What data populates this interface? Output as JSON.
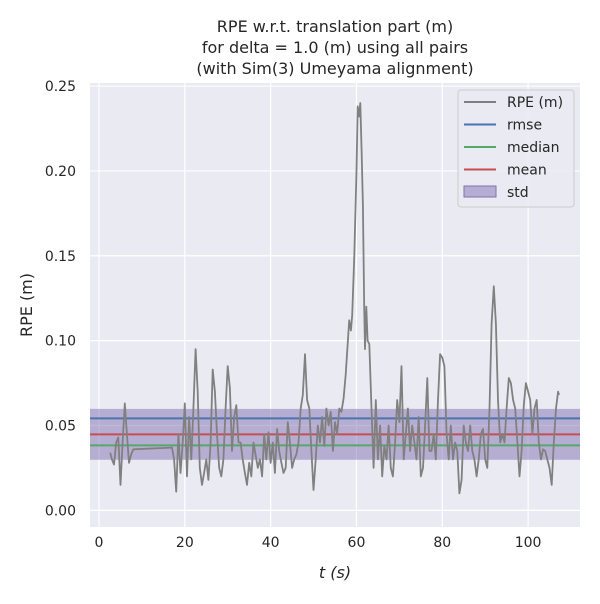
{
  "chart_data": {
    "type": "line",
    "title": [
      "RPE w.r.t. translation part (m)",
      "for delta = 1.0 (m) using all pairs",
      "(with Sim(3) Umeyama alignment)"
    ],
    "xlabel": "t (s)",
    "ylabel": "RPE (m)",
    "xlim": [
      -2.1,
      112.1
    ],
    "ylim": [
      -0.0098,
      0.2518
    ],
    "xticks": [
      0,
      20,
      40,
      60,
      80,
      100
    ],
    "xtick_labels": [
      "0",
      "20",
      "40",
      "60",
      "80",
      "100"
    ],
    "yticks": [
      0,
      0.05,
      0.1,
      0.15,
      0.2,
      0.25
    ],
    "ytick_labels": [
      "0.00",
      "0.05",
      "0.10",
      "0.15",
      "0.20",
      "0.25"
    ],
    "grid": true,
    "legend_position": "top-right",
    "colors": {
      "background": "#eaeaf2",
      "grid": "#ffffff",
      "rpe": "#808080",
      "rmse": "#4c72b0",
      "median": "#55a868",
      "mean": "#c44e52",
      "std": "#8172b2"
    },
    "legend": [
      "RPE (m)",
      "rmse",
      "median",
      "mean",
      "std"
    ],
    "stats": {
      "rmse": 0.0542,
      "median": 0.0383,
      "mean": 0.0448,
      "std": 0.015
    },
    "series": [
      {
        "name": "RPE (m)",
        "x": [
          2.6,
          3.0,
          3.5,
          4.0,
          4.5,
          5.0,
          5.5,
          6.0,
          6.5,
          7.0,
          7.5,
          8.0,
          17.0,
          17.5,
          18.0,
          18.5,
          19.0,
          19.5,
          20.0,
          20.5,
          21.0,
          21.5,
          22.0,
          22.5,
          23.0,
          23.5,
          24.0,
          24.5,
          25.0,
          25.5,
          26.0,
          26.5,
          27.0,
          27.5,
          28.0,
          28.5,
          29.0,
          29.5,
          30.0,
          30.5,
          31.0,
          31.5,
          32.0,
          32.5,
          33.0,
          33.5,
          34.0,
          34.5,
          35.0,
          35.5,
          36.0,
          37.0,
          37.5,
          38.0,
          38.5,
          39.0,
          39.5,
          40.0,
          40.5,
          41.0,
          41.5,
          42.0,
          42.5,
          43.0,
          43.5,
          44.0,
          44.5,
          45.0,
          45.5,
          46.0,
          46.5,
          47.0,
          47.5,
          48.0,
          48.5,
          49.0,
          49.5,
          50.0,
          50.5,
          51.0,
          51.5,
          52.0,
          52.5,
          53.0,
          53.5,
          54.0,
          54.5,
          55.0,
          55.5,
          56.0,
          56.5,
          57.0,
          57.5,
          58.0,
          58.3,
          58.7,
          59.0,
          59.5,
          60.0,
          60.3,
          60.6,
          60.9,
          61.2,
          61.5,
          61.8,
          62.0,
          62.3,
          62.6,
          63.0,
          63.5,
          64.0,
          64.5,
          65.0,
          65.5,
          66.0,
          66.5,
          67.0,
          67.5,
          68.0,
          68.5,
          69.0,
          69.5,
          70.0,
          70.5,
          71.0,
          71.5,
          72.0,
          72.5,
          73.0,
          73.5,
          74.0,
          74.5,
          75.0,
          75.5,
          76.0,
          76.5,
          77.0,
          77.5,
          78.0,
          78.5,
          79.0,
          79.5,
          80.0,
          80.5,
          81.0,
          81.5,
          82.0,
          82.5,
          83.0,
          83.5,
          84.0,
          84.5,
          85.0,
          85.5,
          86.0,
          86.5,
          87.0,
          87.5,
          88.0,
          88.5,
          89.0,
          89.5,
          90.0,
          90.5,
          91.0,
          91.5,
          92.0,
          92.5,
          93.0,
          93.5,
          94.0,
          94.5,
          95.0,
          95.5,
          96.0,
          96.5,
          97.0,
          97.5,
          98.0,
          98.5,
          99.0,
          99.5,
          100.0,
          100.5,
          101.0,
          101.5,
          102.0,
          102.5,
          103.0,
          103.5,
          104.0,
          105.0,
          105.5,
          106.0,
          106.5,
          107.0,
          107.2
        ],
        "y": [
          0.034,
          0.03,
          0.027,
          0.04,
          0.043,
          0.015,
          0.04,
          0.063,
          0.045,
          0.028,
          0.033,
          0.036,
          0.037,
          0.03,
          0.011,
          0.045,
          0.022,
          0.04,
          0.063,
          0.02,
          0.055,
          0.03,
          0.06,
          0.095,
          0.07,
          0.025,
          0.015,
          0.022,
          0.03,
          0.018,
          0.04,
          0.083,
          0.07,
          0.045,
          0.025,
          0.02,
          0.03,
          0.06,
          0.085,
          0.072,
          0.035,
          0.055,
          0.062,
          0.04,
          0.04,
          0.03,
          0.022,
          0.015,
          0.028,
          0.02,
          0.04,
          0.025,
          0.03,
          0.02,
          0.045,
          0.03,
          0.046,
          0.028,
          0.04,
          0.022,
          0.048,
          0.035,
          0.028,
          0.022,
          0.025,
          0.052,
          0.04,
          0.025,
          0.03,
          0.033,
          0.04,
          0.06,
          0.068,
          0.092,
          0.065,
          0.06,
          0.035,
          0.012,
          0.03,
          0.05,
          0.04,
          0.055,
          0.038,
          0.06,
          0.05,
          0.058,
          0.035,
          0.052,
          0.045,
          0.06,
          0.058,
          0.066,
          0.08,
          0.1,
          0.112,
          0.106,
          0.115,
          0.15,
          0.2,
          0.238,
          0.232,
          0.24,
          0.212,
          0.18,
          0.12,
          0.095,
          0.12,
          0.1,
          0.098,
          0.06,
          0.025,
          0.065,
          0.03,
          0.05,
          0.02,
          0.038,
          0.03,
          0.05,
          0.025,
          0.02,
          0.04,
          0.065,
          0.052,
          0.085,
          0.03,
          0.045,
          0.06,
          0.035,
          0.05,
          0.04,
          0.03,
          0.055,
          0.02,
          0.025,
          0.05,
          0.078,
          0.035,
          0.035,
          0.045,
          0.03,
          0.065,
          0.092,
          0.09,
          0.085,
          0.045,
          0.03,
          0.05,
          0.03,
          0.04,
          0.035,
          0.01,
          0.018,
          0.05,
          0.04,
          0.035,
          0.05,
          0.035,
          0.03,
          0.02,
          0.03,
          0.045,
          0.048,
          0.03,
          0.025,
          0.06,
          0.11,
          0.132,
          0.11,
          0.065,
          0.04,
          0.045,
          0.04,
          0.06,
          0.078,
          0.075,
          0.065,
          0.06,
          0.04,
          0.02,
          0.035,
          0.062,
          0.075,
          0.07,
          0.065,
          0.045,
          0.06,
          0.065,
          0.04,
          0.03,
          0.036,
          0.035,
          0.025,
          0.015,
          0.04,
          0.06,
          0.07,
          0.068
        ]
      }
    ]
  }
}
